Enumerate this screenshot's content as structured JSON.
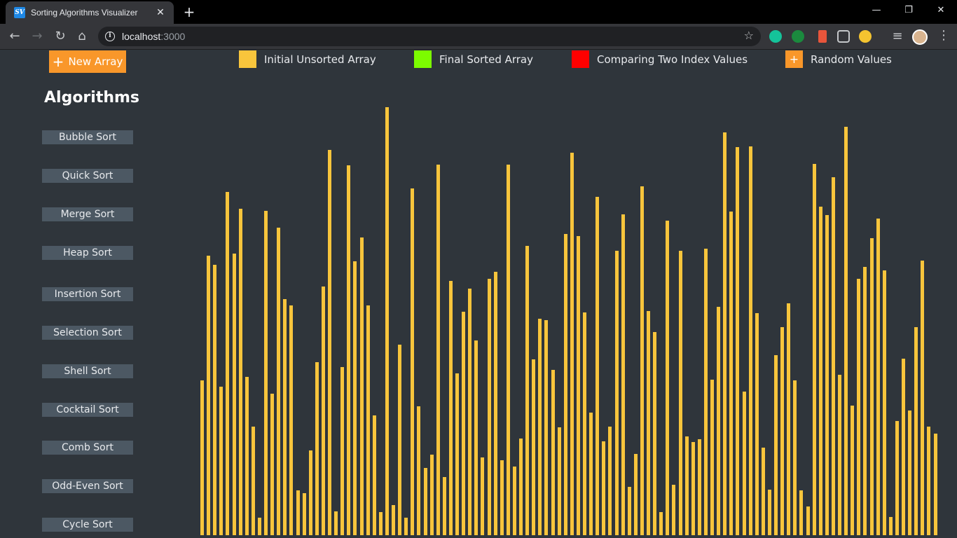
{
  "browser": {
    "tab_title": "Sorting Algorithms Visualizer",
    "favicon_text": "SV",
    "url_host": "localhost",
    "url_port": ":3000"
  },
  "controls": {
    "new_array_label": "New Array"
  },
  "legend": [
    {
      "label": "Initial Unsorted Array",
      "color": "#f8c53c",
      "symbol": ""
    },
    {
      "label": "Final Sorted Array",
      "color": "#7cfc00",
      "symbol": ""
    },
    {
      "label": "Comparing Two Index Values",
      "color": "#ff0000",
      "symbol": ""
    },
    {
      "label": "Random Values",
      "color": "#f9972a",
      "symbol": "+"
    }
  ],
  "sidebar": {
    "title": "Algorithms",
    "items": [
      {
        "label": "Bubble Sort"
      },
      {
        "label": "Quick Sort"
      },
      {
        "label": "Merge Sort"
      },
      {
        "label": "Heap Sort"
      },
      {
        "label": "Insertion Sort"
      },
      {
        "label": "Selection Sort"
      },
      {
        "label": "Shell Sort"
      },
      {
        "label": "Cocktail Sort"
      },
      {
        "label": "Comb Sort"
      },
      {
        "label": "Odd-Even Sort"
      },
      {
        "label": "Cycle Sort"
      }
    ]
  },
  "array": {
    "bar_color": "#f8c53c",
    "values": [
      221,
      399,
      386,
      212,
      490,
      402,
      466,
      226,
      155,
      25,
      463,
      202,
      439,
      337,
      328,
      64,
      60,
      121,
      247,
      355,
      550,
      34,
      240,
      528,
      391,
      425,
      328,
      171,
      33,
      611,
      43,
      272,
      25,
      495,
      184,
      96,
      115,
      529,
      83,
      363,
      231,
      319,
      352,
      278,
      111,
      366,
      376,
      107,
      529,
      98,
      138,
      413,
      251,
      309,
      307,
      236,
      154,
      430,
      546,
      427,
      318,
      175,
      483,
      134,
      155,
      406,
      458,
      69,
      116,
      498,
      320,
      290,
      33,
      449,
      72,
      406,
      141,
      133,
      137,
      409,
      222,
      326,
      575,
      462,
      554,
      205,
      555,
      317,
      125,
      65,
      257,
      297,
      331,
      221,
      64,
      41,
      530,
      469,
      457,
      511,
      229,
      583,
      185,
      366,
      383,
      424,
      452,
      378,
      26,
      163,
      252,
      178,
      297,
      392,
      155,
      145
    ]
  }
}
